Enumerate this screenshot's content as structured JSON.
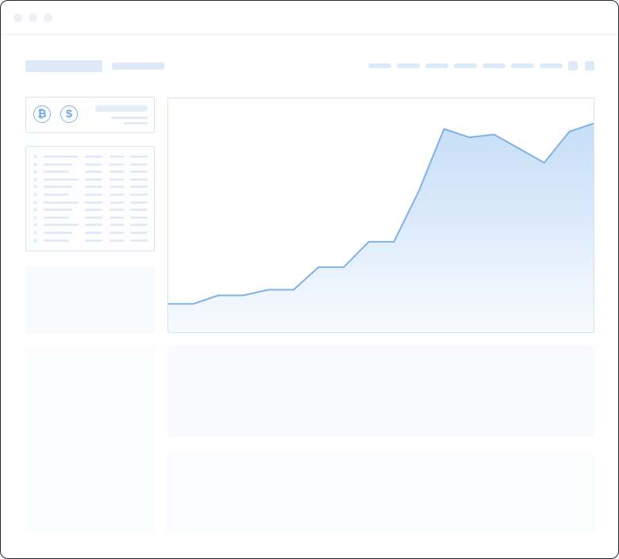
{
  "window": {
    "controls": [
      "close-dot",
      "minimize-dot",
      "maximize-dot"
    ]
  },
  "wallet": {
    "coins": [
      {
        "symbol": "₿",
        "icon": "bitcoin-icon"
      },
      {
        "symbol": "$",
        "icon": "dollar-icon"
      }
    ]
  },
  "colors": {
    "accent": "#7fb2e8",
    "placeholder": "#dde9f8",
    "border": "#d6e6f8",
    "window_border": "#1f2a37"
  },
  "chart_data": {
    "type": "area",
    "title": "",
    "xlabel": "",
    "ylabel": "",
    "grid": false,
    "legend": "none",
    "x": [
      0,
      1,
      2,
      3,
      4,
      5,
      6,
      7,
      8,
      9,
      10,
      11,
      12,
      13,
      14,
      15,
      16,
      17
    ],
    "series": [
      {
        "values": [
          5,
          5,
          8,
          8,
          10,
          10,
          18,
          18,
          27,
          27,
          45,
          67,
          64,
          65,
          60,
          55,
          66,
          69
        ]
      }
    ],
    "ylim": [
      0,
      75
    ]
  }
}
